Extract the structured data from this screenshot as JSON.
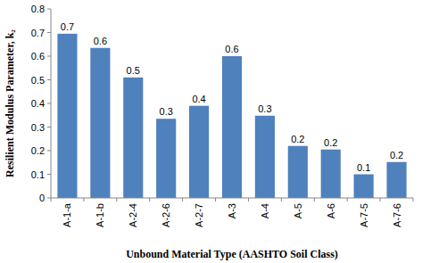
{
  "chart_data": {
    "type": "bar",
    "x_label": "Unbound Material Type (AASHTO Soil Class)",
    "y_label": "Resilient Modulus Parameter, k₂",
    "categories": [
      "A-1-a",
      "A-1-b",
      "A-2-4",
      "A-2-6",
      "A-2-7",
      "A-3",
      "A-4",
      "A-5",
      "A-6",
      "A-7-5",
      "A-7-6"
    ],
    "values": [
      0.695,
      0.635,
      0.51,
      0.335,
      0.39,
      0.6,
      0.348,
      0.22,
      0.205,
      0.1,
      0.152
    ],
    "value_labels": [
      "0.7",
      "0.6",
      "0.5",
      "0.3",
      "0.4",
      "0.6",
      "0.3",
      "0.2",
      "0.2",
      "0.1",
      "0.2"
    ],
    "color": "#4f81bd",
    "ylim": [
      0,
      0.8
    ],
    "yticks": [
      0,
      0.1,
      0.2,
      0.3,
      0.4,
      0.5,
      0.6,
      0.7,
      0.8
    ],
    "grid": false,
    "data_labels": true
  }
}
